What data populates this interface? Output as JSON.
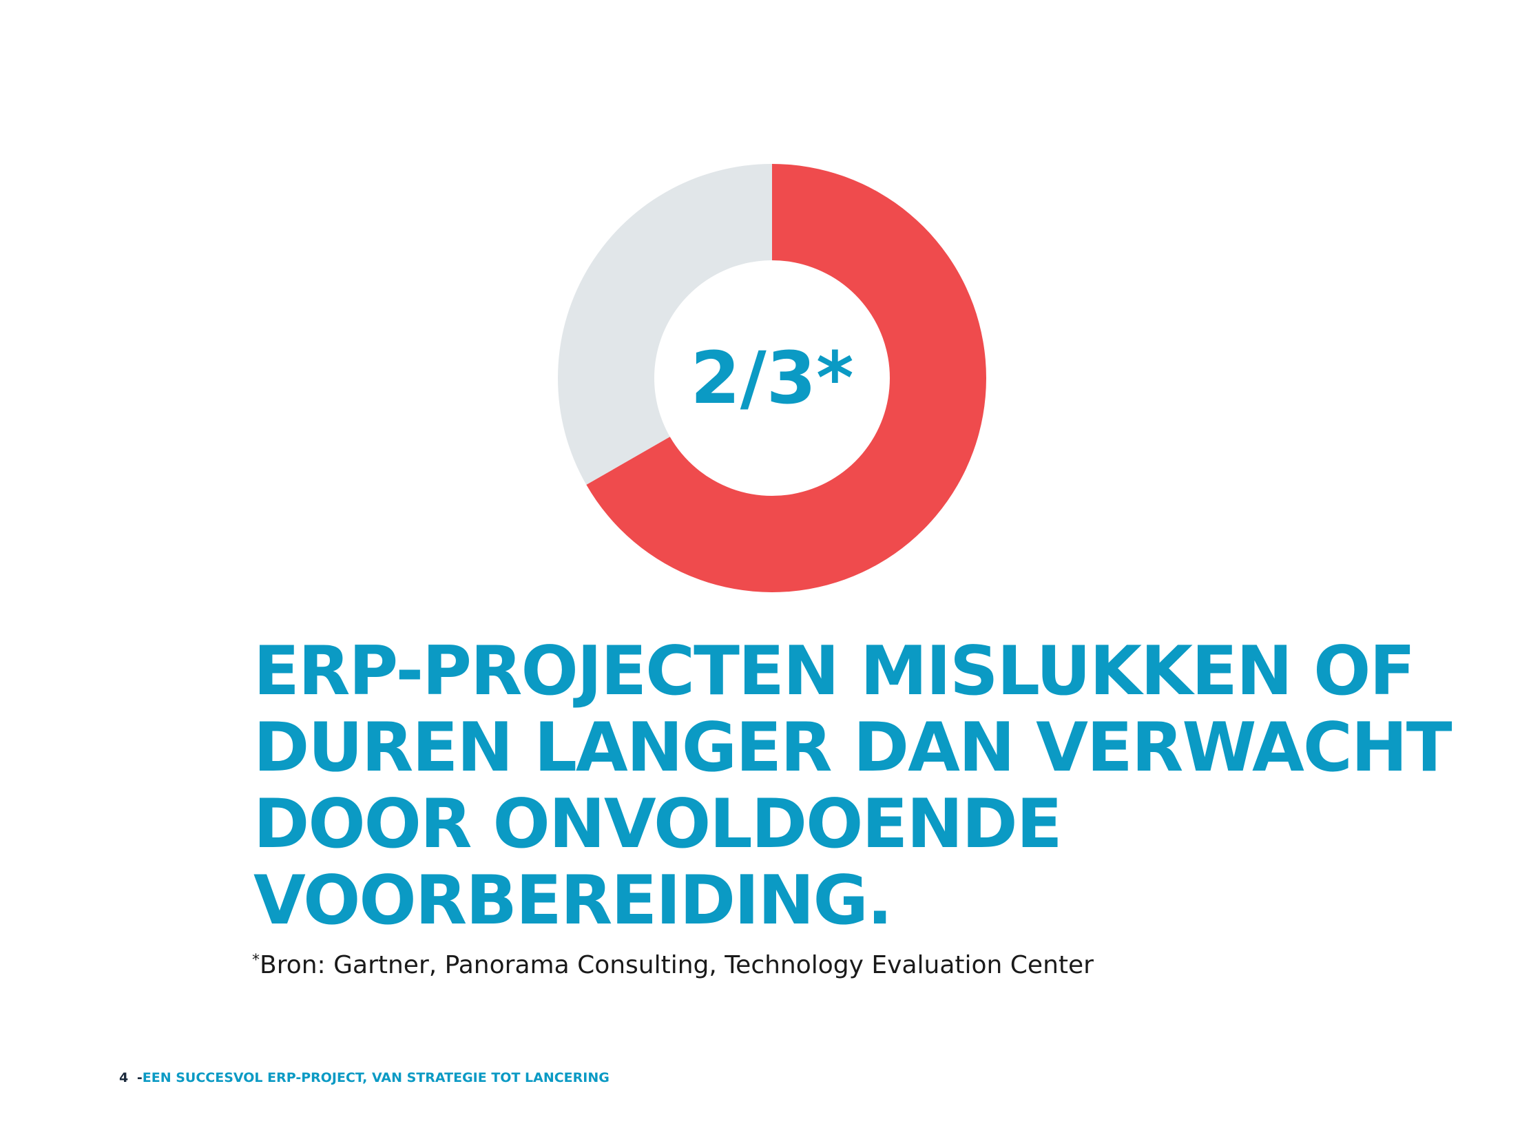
{
  "chart_data": {
    "type": "pie",
    "donut": true,
    "title": "",
    "center_label": "2/3*",
    "slices": [
      {
        "value": 66.7,
        "color": "#ef4b4d"
      },
      {
        "value": 33.3,
        "color": "#e1e6e9"
      }
    ],
    "start": "top",
    "direction": "clockwise"
  },
  "headline": {
    "lines": [
      "ERP-PROJECTEN MISLUKKEN OF",
      "DUREN LANGER DAN VERWACHT",
      "DOOR ONVOLDOENDE",
      "VOORBEREIDING."
    ]
  },
  "source": {
    "marker": "*",
    "text": "Bron: Gartner, Panorama Consulting, Technology Evaluation Center"
  },
  "footer": {
    "page_number": "4",
    "separator": "-",
    "title": "EEN SUCCESVOL ERP-PROJECT, VAN STRATEGIE TOT LANCERING"
  },
  "colors": {
    "accent_blue": "#0b9ac4",
    "slice_red": "#ef4b4d",
    "slice_grey": "#e1e6e9"
  }
}
